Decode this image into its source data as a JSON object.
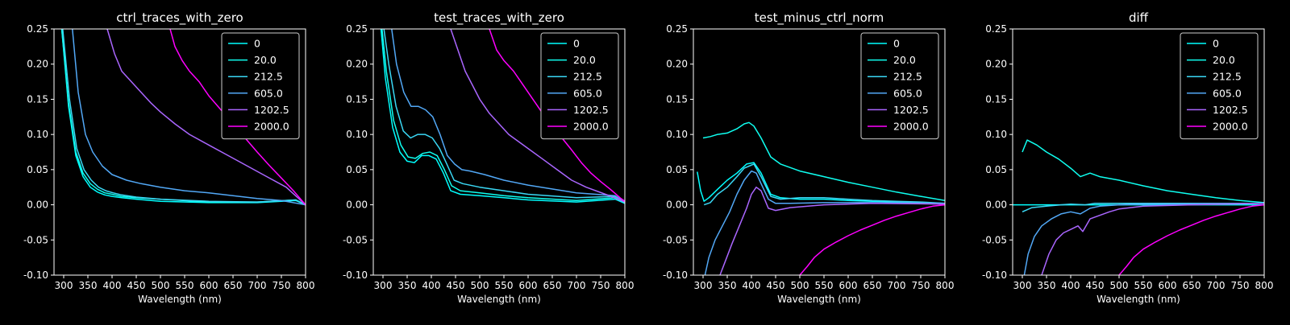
{
  "figure": {
    "background": "#000000",
    "foreground": "#ffffff"
  },
  "series_colors": {
    "0": "#00ffff",
    "20.0": "#0ffff0",
    "212.5": "#3ad8f5",
    "605.0": "#52a8f6",
    "1202.5": "#aa66ff",
    "2000.0": "#ff00ff"
  },
  "chart_data": [
    {
      "type": "line",
      "title": "ctrl_traces_with_zero",
      "xlabel": "Wavelength (nm)",
      "ylabel": "",
      "xlim": [
        280,
        800
      ],
      "ylim": [
        -0.1,
        0.25
      ],
      "xticks": [
        300,
        350,
        400,
        450,
        500,
        550,
        600,
        650,
        700,
        750,
        800
      ],
      "yticks": [
        -0.1,
        -0.05,
        0.0,
        0.05,
        0.1,
        0.15,
        0.2,
        0.25
      ],
      "grid": false,
      "legend": "top-right",
      "series": [
        {
          "name": "0",
          "color": "#00ffff",
          "x": [
            296,
            310,
            325,
            340,
            355,
            370,
            385,
            400,
            420,
            450,
            500,
            600,
            700,
            780,
            800
          ],
          "y": [
            0.25,
            0.14,
            0.07,
            0.04,
            0.025,
            0.018,
            0.014,
            0.012,
            0.01,
            0.008,
            0.005,
            0.003,
            0.003,
            0.006,
            0.0
          ]
        },
        {
          "name": "20.0",
          "color": "#0ffff0",
          "x": [
            296,
            310,
            325,
            340,
            355,
            370,
            385,
            400,
            420,
            450,
            500,
            600,
            700,
            780,
            800
          ],
          "y": [
            0.25,
            0.145,
            0.075,
            0.045,
            0.03,
            0.022,
            0.017,
            0.015,
            0.012,
            0.01,
            0.008,
            0.004,
            0.004,
            0.007,
            0.0
          ]
        },
        {
          "name": "212.5",
          "color": "#3ad8f5",
          "x": [
            298,
            312,
            327,
            342,
            357,
            372,
            387,
            402,
            420,
            450,
            500,
            600,
            700,
            780,
            800
          ],
          "y": [
            0.25,
            0.15,
            0.08,
            0.05,
            0.035,
            0.025,
            0.02,
            0.017,
            0.014,
            0.011,
            0.008,
            0.005,
            0.004,
            0.007,
            0.0
          ]
        },
        {
          "name": "605.0",
          "color": "#52a8f6",
          "x": [
            318,
            330,
            345,
            360,
            380,
            400,
            430,
            460,
            500,
            550,
            600,
            650,
            700,
            750,
            800
          ],
          "y": [
            0.25,
            0.16,
            0.1,
            0.075,
            0.055,
            0.043,
            0.035,
            0.03,
            0.025,
            0.02,
            0.017,
            0.013,
            0.009,
            0.006,
            0.0
          ]
        },
        {
          "name": "1202.5",
          "color": "#aa66ff",
          "x": [
            390,
            405,
            420,
            440,
            460,
            480,
            500,
            530,
            560,
            600,
            640,
            680,
            720,
            760,
            800
          ],
          "y": [
            0.25,
            0.215,
            0.19,
            0.175,
            0.16,
            0.145,
            0.132,
            0.115,
            0.1,
            0.085,
            0.07,
            0.055,
            0.04,
            0.025,
            0.0
          ]
        },
        {
          "name": "2000.0",
          "color": "#ff00ff",
          "x": [
            520,
            530,
            545,
            560,
            580,
            600,
            625,
            650,
            675,
            700,
            725,
            750,
            775,
            800
          ],
          "y": [
            0.25,
            0.225,
            0.205,
            0.19,
            0.175,
            0.155,
            0.135,
            0.115,
            0.095,
            0.075,
            0.056,
            0.038,
            0.02,
            0.0
          ]
        }
      ]
    },
    {
      "type": "line",
      "title": "test_traces_with_zero",
      "xlabel": "Wavelength (nm)",
      "ylabel": "",
      "xlim": [
        280,
        800
      ],
      "ylim": [
        -0.1,
        0.25
      ],
      "xticks": [
        300,
        350,
        400,
        450,
        500,
        550,
        600,
        650,
        700,
        750,
        800
      ],
      "yticks": [
        -0.1,
        -0.05,
        0.0,
        0.05,
        0.1,
        0.15,
        0.2,
        0.25
      ],
      "grid": false,
      "legend": "top-right",
      "series": [
        {
          "name": "0",
          "color": "#00ffff",
          "x": [
            296,
            305,
            320,
            335,
            350,
            365,
            380,
            395,
            410,
            425,
            440,
            460,
            500,
            550,
            600,
            700,
            780,
            800
          ],
          "y": [
            0.25,
            0.18,
            0.11,
            0.075,
            0.062,
            0.06,
            0.07,
            0.07,
            0.065,
            0.045,
            0.02,
            0.015,
            0.013,
            0.01,
            0.007,
            0.004,
            0.008,
            0.002
          ]
        },
        {
          "name": "20.0",
          "color": "#0ffff0",
          "x": [
            298,
            307,
            322,
            337,
            352,
            367,
            382,
            397,
            412,
            427,
            442,
            460,
            500,
            550,
            600,
            700,
            780,
            800
          ],
          "y": [
            0.25,
            0.19,
            0.12,
            0.085,
            0.068,
            0.066,
            0.073,
            0.075,
            0.07,
            0.05,
            0.027,
            0.02,
            0.017,
            0.013,
            0.01,
            0.006,
            0.01,
            0.003
          ]
        },
        {
          "name": "212.5",
          "color": "#3ad8f5",
          "x": [
            302,
            312,
            327,
            342,
            357,
            372,
            387,
            402,
            417,
            432,
            447,
            465,
            500,
            550,
            600,
            700,
            780,
            800
          ],
          "y": [
            0.25,
            0.2,
            0.14,
            0.105,
            0.095,
            0.1,
            0.1,
            0.095,
            0.08,
            0.058,
            0.035,
            0.03,
            0.025,
            0.02,
            0.015,
            0.01,
            0.012,
            0.003
          ]
        },
        {
          "name": "605.0",
          "color": "#52a8f6",
          "x": [
            318,
            328,
            343,
            358,
            373,
            388,
            403,
            418,
            433,
            448,
            463,
            480,
            510,
            550,
            600,
            700,
            780,
            800
          ],
          "y": [
            0.25,
            0.2,
            0.16,
            0.14,
            0.14,
            0.135,
            0.125,
            0.1,
            0.07,
            0.058,
            0.05,
            0.048,
            0.043,
            0.035,
            0.028,
            0.017,
            0.013,
            0.004
          ]
        },
        {
          "name": "1202.5",
          "color": "#aa66ff",
          "x": [
            440,
            455,
            470,
            485,
            500,
            520,
            540,
            560,
            580,
            600,
            630,
            660,
            690,
            720,
            760,
            800
          ],
          "y": [
            0.25,
            0.22,
            0.19,
            0.17,
            0.15,
            0.13,
            0.115,
            0.1,
            0.09,
            0.08,
            0.065,
            0.05,
            0.035,
            0.025,
            0.015,
            0.004
          ]
        },
        {
          "name": "2000.0",
          "color": "#ff00ff",
          "x": [
            520,
            535,
            550,
            570,
            590,
            610,
            630,
            650,
            670,
            690,
            710,
            730,
            750,
            770,
            790,
            800
          ],
          "y": [
            0.25,
            0.22,
            0.205,
            0.19,
            0.17,
            0.15,
            0.13,
            0.115,
            0.095,
            0.078,
            0.06,
            0.045,
            0.033,
            0.022,
            0.01,
            0.005
          ]
        }
      ]
    },
    {
      "type": "line",
      "title": "test_minus_ctrl_norm",
      "xlabel": "Wavelength (nm)",
      "ylabel": "",
      "xlim": [
        280,
        800
      ],
      "ylim": [
        -0.1,
        0.25
      ],
      "xticks": [
        300,
        350,
        400,
        450,
        500,
        550,
        600,
        650,
        700,
        750,
        800
      ],
      "yticks": [
        -0.1,
        -0.05,
        0.0,
        0.05,
        0.1,
        0.15,
        0.2,
        0.25
      ],
      "grid": false,
      "legend": "top-right",
      "series": [
        {
          "name": "0",
          "color": "#00ffff",
          "x": [
            288,
            295,
            302,
            312,
            330,
            350,
            370,
            390,
            405,
            420,
            440,
            460,
            500,
            550,
            600,
            650,
            700,
            750,
            800
          ],
          "y": [
            0.047,
            0.02,
            0.005,
            0.01,
            0.022,
            0.035,
            0.045,
            0.058,
            0.06,
            0.045,
            0.015,
            0.01,
            0.008,
            0.008,
            0.006,
            0.005,
            0.004,
            0.003,
            0.002
          ]
        },
        {
          "name": "20.0",
          "color": "#0ffff0",
          "x": [
            300,
            315,
            330,
            350,
            370,
            385,
            395,
            405,
            420,
            440,
            460,
            500,
            550,
            600,
            650,
            700,
            750,
            800
          ],
          "y": [
            0.095,
            0.097,
            0.1,
            0.102,
            0.108,
            0.115,
            0.117,
            0.112,
            0.095,
            0.068,
            0.058,
            0.048,
            0.04,
            0.032,
            0.025,
            0.018,
            0.012,
            0.006
          ]
        },
        {
          "name": "212.5",
          "color": "#3ad8f5",
          "x": [
            302,
            315,
            330,
            350,
            370,
            385,
            395,
            405,
            420,
            440,
            460,
            500,
            550,
            600,
            650,
            700,
            750,
            800
          ],
          "y": [
            0.0,
            0.003,
            0.015,
            0.025,
            0.04,
            0.052,
            0.055,
            0.058,
            0.04,
            0.012,
            0.008,
            0.01,
            0.01,
            0.008,
            0.006,
            0.005,
            0.004,
            0.002
          ]
        },
        {
          "name": "605.0",
          "color": "#52a8f6",
          "x": [
            304,
            312,
            325,
            340,
            355,
            370,
            385,
            400,
            410,
            420,
            435,
            450,
            480,
            550,
            650,
            800
          ],
          "y": [
            -0.1,
            -0.075,
            -0.05,
            -0.03,
            -0.01,
            0.015,
            0.035,
            0.048,
            0.045,
            0.03,
            0.008,
            0.002,
            0.002,
            0.003,
            0.003,
            0.002
          ]
        },
        {
          "name": "1202.5",
          "color": "#aa66ff",
          "x": [
            335,
            345,
            360,
            375,
            390,
            400,
            410,
            420,
            435,
            450,
            480,
            550,
            650,
            800
          ],
          "y": [
            -0.1,
            -0.082,
            -0.055,
            -0.03,
            -0.005,
            0.015,
            0.025,
            0.02,
            -0.005,
            -0.008,
            -0.004,
            0.0,
            0.002,
            0.001
          ]
        },
        {
          "name": "2000.0",
          "color": "#ff00ff",
          "x": [
            500,
            515,
            530,
            550,
            575,
            600,
            625,
            650,
            675,
            700,
            725,
            750,
            775,
            800
          ],
          "y": [
            -0.1,
            -0.088,
            -0.075,
            -0.063,
            -0.053,
            -0.044,
            -0.036,
            -0.029,
            -0.022,
            -0.016,
            -0.011,
            -0.006,
            -0.002,
            0.0
          ]
        }
      ]
    },
    {
      "type": "line",
      "title": "diff",
      "xlabel": "Wavelength (nm)",
      "ylabel": "",
      "xlim": [
        280,
        800
      ],
      "ylim": [
        -0.1,
        0.25
      ],
      "xticks": [
        300,
        350,
        400,
        450,
        500,
        550,
        600,
        650,
        700,
        750,
        800
      ],
      "yticks": [
        -0.1,
        -0.05,
        0.0,
        0.05,
        0.1,
        0.15,
        0.2,
        0.25
      ],
      "grid": false,
      "legend": "top-right",
      "series": [
        {
          "name": "0",
          "color": "#00ffff",
          "x": [
            280,
            400,
            800
          ],
          "y": [
            0.0,
            0.0,
            0.0
          ]
        },
        {
          "name": "20.0",
          "color": "#0ffff0",
          "x": [
            300,
            310,
            330,
            350,
            375,
            400,
            420,
            440,
            460,
            500,
            550,
            600,
            650,
            700,
            750,
            800
          ],
          "y": [
            0.075,
            0.092,
            0.085,
            0.075,
            0.065,
            0.052,
            0.04,
            0.045,
            0.04,
            0.035,
            0.027,
            0.02,
            0.015,
            0.01,
            0.006,
            0.003
          ]
        },
        {
          "name": "212.5",
          "color": "#3ad8f5",
          "x": [
            300,
            320,
            350,
            380,
            400,
            430,
            450,
            500,
            550,
            600,
            700,
            800
          ],
          "y": [
            -0.01,
            -0.004,
            -0.002,
            0.0,
            0.001,
            0.0,
            0.002,
            0.002,
            0.002,
            0.002,
            0.002,
            0.002
          ]
        },
        {
          "name": "605.0",
          "color": "#52a8f6",
          "x": [
            304,
            312,
            325,
            340,
            360,
            380,
            400,
            420,
            440,
            460,
            500,
            550,
            600,
            700,
            800
          ],
          "y": [
            -0.1,
            -0.07,
            -0.045,
            -0.03,
            -0.02,
            -0.013,
            -0.01,
            -0.013,
            -0.005,
            -0.002,
            0.0,
            0.001,
            0.001,
            0.002,
            0.002
          ]
        },
        {
          "name": "1202.5",
          "color": "#aa66ff",
          "x": [
            340,
            355,
            370,
            385,
            400,
            415,
            425,
            440,
            460,
            480,
            500,
            550,
            650,
            800
          ],
          "y": [
            -0.1,
            -0.07,
            -0.05,
            -0.04,
            -0.035,
            -0.03,
            -0.038,
            -0.02,
            -0.015,
            -0.01,
            -0.006,
            -0.002,
            0.0,
            0.002
          ]
        },
        {
          "name": "2000.0",
          "color": "#ff00ff",
          "x": [
            500,
            515,
            530,
            550,
            575,
            600,
            625,
            650,
            675,
            700,
            725,
            750,
            775,
            800
          ],
          "y": [
            -0.1,
            -0.088,
            -0.075,
            -0.063,
            -0.053,
            -0.044,
            -0.036,
            -0.029,
            -0.022,
            -0.016,
            -0.011,
            -0.006,
            -0.002,
            0.0
          ]
        }
      ]
    }
  ]
}
